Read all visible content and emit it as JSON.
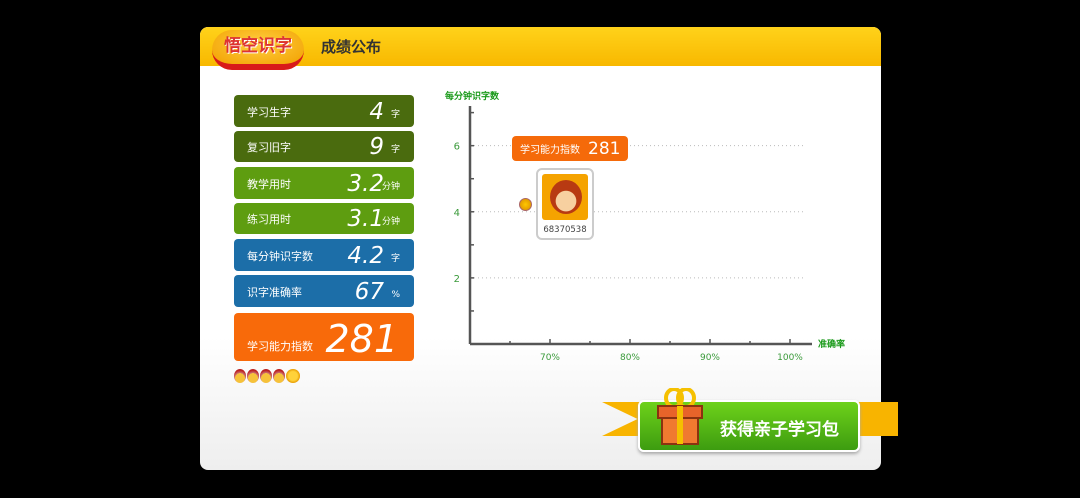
{
  "header": {
    "logo_text": "悟空识字",
    "title": "成绩公布"
  },
  "stats": [
    {
      "label": "学习生字",
      "value": "4",
      "unit": "字",
      "color": "#4a6b0e"
    },
    {
      "label": "复习旧字",
      "value": "9",
      "unit": "字",
      "color": "#4a6b0e"
    },
    {
      "label": "教学用时",
      "value": "3.2",
      "unit": "分钟",
      "color": "#5e9d10"
    },
    {
      "label": "练习用时",
      "value": "3.1",
      "unit": "分钟",
      "color": "#5e9d10"
    },
    {
      "label": "每分钟识字数",
      "value": "4.2",
      "unit": "字",
      "color": "#1c6ea8"
    },
    {
      "label": "识字准确率",
      "value": "67",
      "unit": "%",
      "color": "#1c6ea8"
    },
    {
      "label": "学习能力指数",
      "value": "281",
      "unit": "",
      "color": "#f86a0a"
    }
  ],
  "rating": {
    "medals": 4,
    "suns": 1
  },
  "chart_data": {
    "type": "scatter",
    "xlabel": "准确率",
    "ylabel": "每分钟识字数",
    "xlim": [
      60,
      102
    ],
    "ylim": [
      0,
      7.2
    ],
    "x_ticks": [
      70,
      80,
      90,
      100
    ],
    "x_tick_labels": [
      "70%",
      "80%",
      "90%",
      "100%"
    ],
    "y_ticks": [
      2,
      4,
      6
    ],
    "y_tick_labels": [
      "2",
      "4",
      "6"
    ],
    "grid": "horizontal dotted",
    "points": [
      {
        "x": 67,
        "y": 4.2,
        "user_id": "68370538"
      }
    ],
    "badge": {
      "label": "学习能力指数",
      "value": "281"
    }
  },
  "gift_button": {
    "label": "获得亲子学习包"
  }
}
